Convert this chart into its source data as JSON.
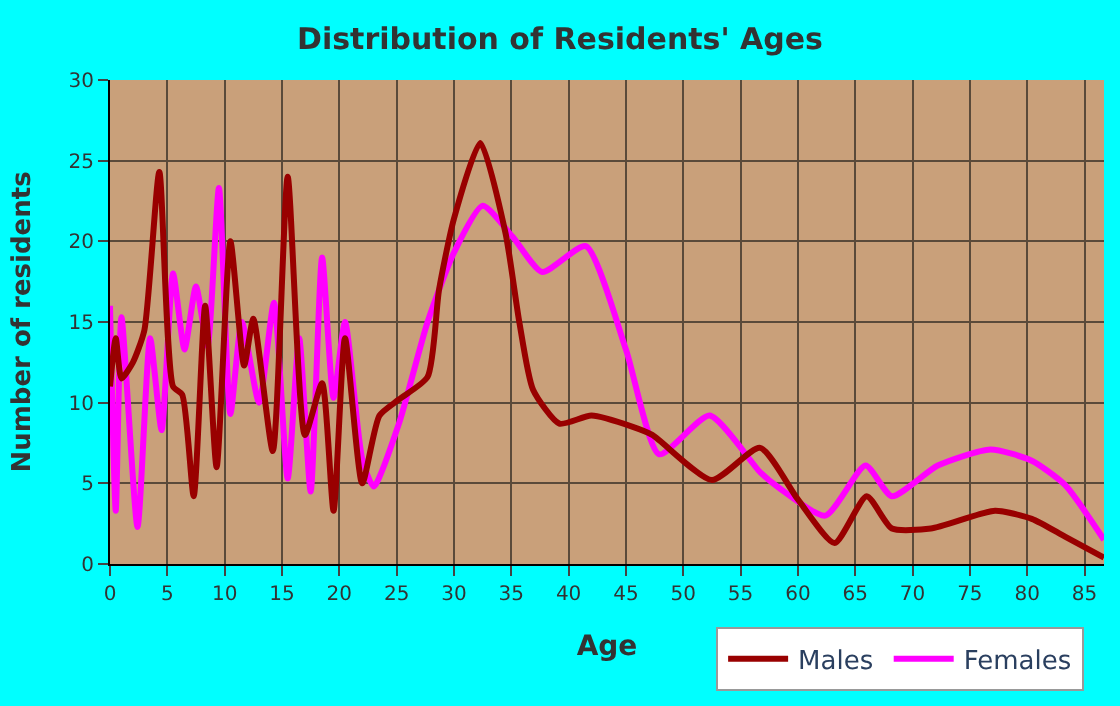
{
  "chart_data": {
    "type": "line",
    "title": "Distribution of Residents' Ages",
    "xlabel": "Age",
    "ylabel": "Number of residents",
    "xlim": [
      0,
      86.7
    ],
    "xticks": [
      0,
      5,
      10,
      15,
      20,
      25,
      30,
      35,
      40,
      45,
      50,
      55,
      60,
      65,
      70,
      75,
      80,
      85
    ],
    "ylim": [
      0,
      30
    ],
    "yticks": [
      0,
      5,
      10,
      15,
      20,
      25,
      30
    ],
    "grid": true,
    "legend": "bottom",
    "marker": "none",
    "line_style": "solid",
    "series": [
      {
        "name": "Males",
        "color": "#990000",
        "x": [
          0,
          0.5,
          1,
          2,
          3,
          4.3,
          5.5,
          6.3,
          7.3,
          8.3,
          9.3,
          10.5,
          11.7,
          12.5,
          14.2,
          15.5,
          17,
          18.5,
          19.5,
          20.5,
          22,
          23.5,
          25.2,
          27.7,
          28.7,
          30,
          32.3,
          34.5,
          35.7,
          36.9,
          39.2,
          42,
          45.6,
          47.3,
          52.5,
          56.7,
          60,
          63.2,
          66,
          68.2,
          71.6,
          77.2,
          80.4,
          83.3,
          86.7
        ],
        "values": [
          11,
          14,
          11.5,
          12.5,
          14.5,
          24.3,
          11,
          10.5,
          4.2,
          16,
          6,
          20,
          12.3,
          15.2,
          7,
          24,
          8,
          11.2,
          3.3,
          14,
          5,
          9.2,
          10.2,
          11.6,
          17,
          21.4,
          26.1,
          20.5,
          15,
          10.8,
          8.7,
          9.2,
          8.5,
          8,
          5.2,
          7.2,
          4,
          1.3,
          4.2,
          2.2,
          2.2,
          3.3,
          2.8,
          1.7,
          0.4
        ]
      },
      {
        "name": "Females",
        "color": "#ff00ff",
        "x": [
          0,
          0.5,
          1,
          2.4,
          3.5,
          4.5,
          5.5,
          6.5,
          7.5,
          8.5,
          9.5,
          10.5,
          11.5,
          13,
          14.3,
          15.5,
          16.5,
          17.5,
          18.5,
          19.5,
          20.5,
          22,
          23,
          25.2,
          27.7,
          30,
          32.5,
          35.1,
          37.7,
          41.5,
          45,
          47.9,
          52.3,
          56.7,
          58.4,
          62.4,
          65.9,
          68.2,
          72.2,
          76.8,
          80.4,
          83.3,
          86.7
        ],
        "values": [
          16,
          3.3,
          15.3,
          2.3,
          14,
          8.3,
          18,
          13.3,
          17.2,
          13.5,
          23.3,
          9.3,
          15,
          10,
          16.2,
          5.3,
          14,
          4.5,
          19,
          10.3,
          15,
          6.5,
          4.8,
          8.7,
          15,
          19.3,
          22.2,
          20.3,
          18.1,
          19.7,
          13.3,
          6.8,
          9.2,
          5.7,
          4.7,
          3,
          6.1,
          4.2,
          6.1,
          7.1,
          6.4,
          4.9,
          1.5
        ]
      }
    ]
  }
}
